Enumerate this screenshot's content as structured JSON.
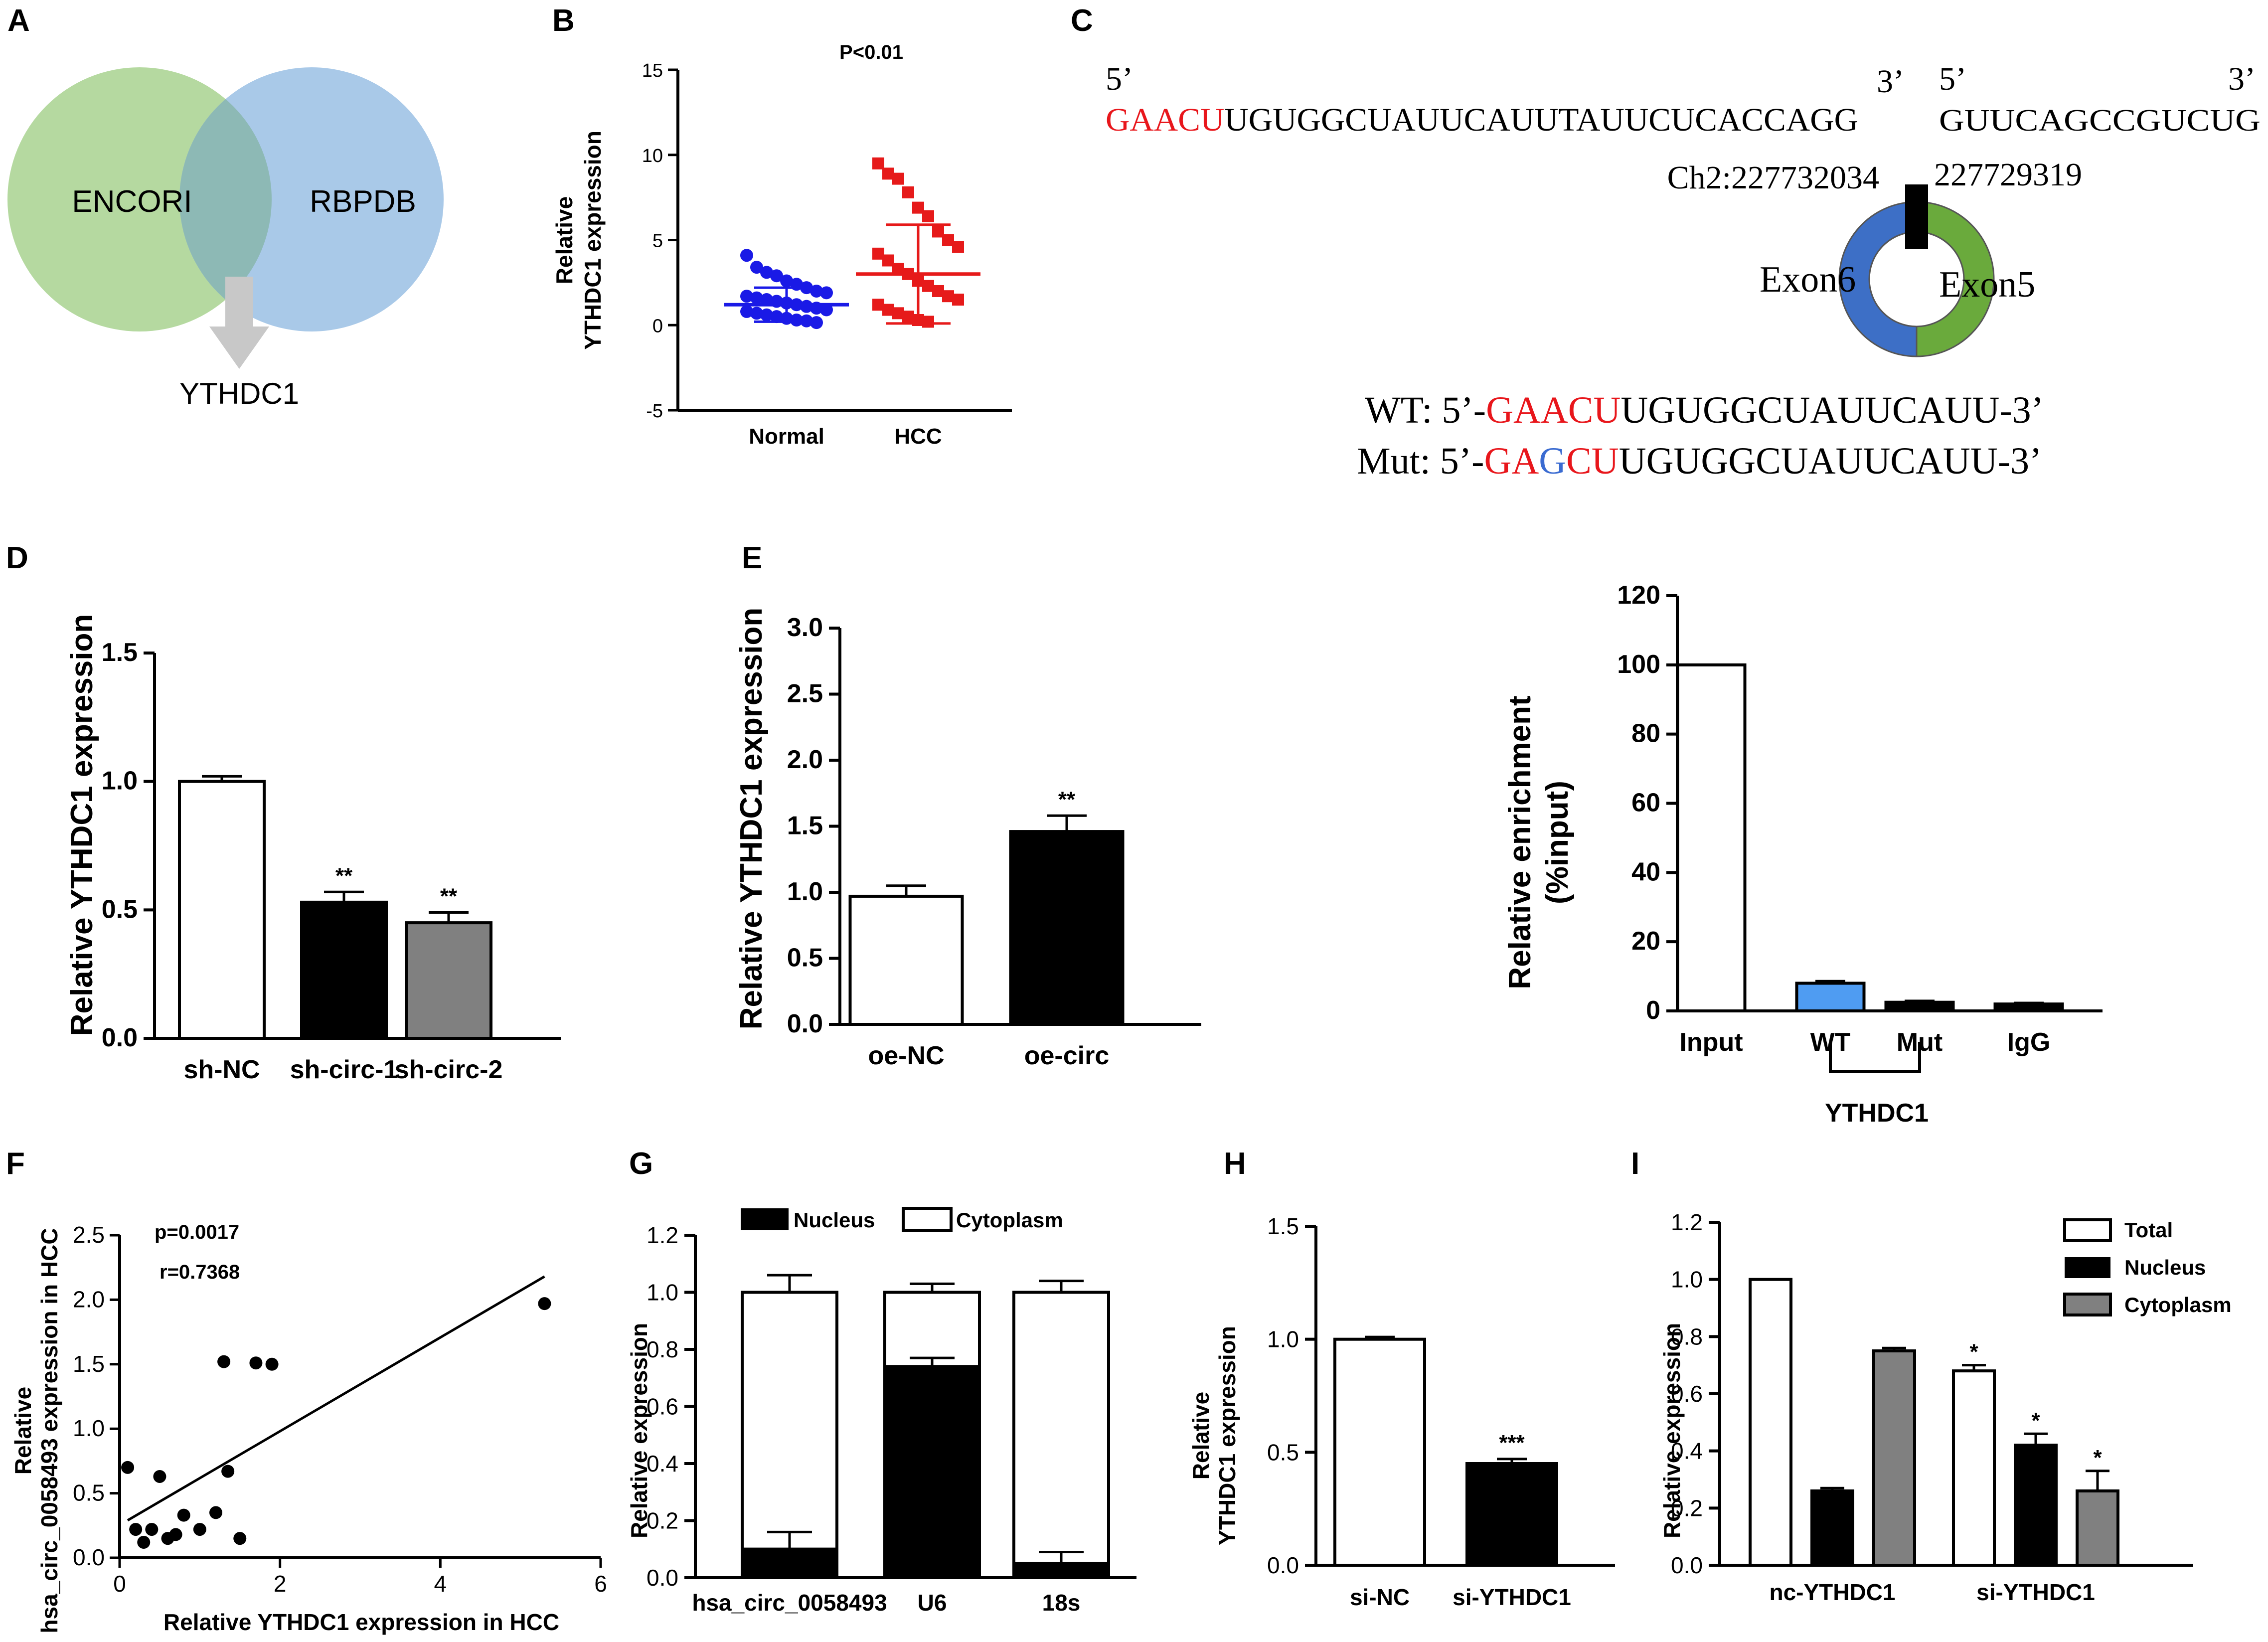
{
  "colors": {
    "venn_left": "#b5d9a0",
    "venn_right": "#a9c9e8",
    "venn_overlap": "#8db9b5",
    "arrow": "#c8c8c8",
    "normal_points": "#1a1ae6",
    "hcc_points": "#e61a1a",
    "seq_red": "#e8161b",
    "seq_blue": "#3a6bd1",
    "exon6": "#3d6fc6",
    "exon5": "#6aaa3c",
    "wt_bar": "#4f9cf2",
    "grey_bar": "#808080"
  },
  "panelA": {
    "label": "A",
    "left_circle": "ENCORI",
    "right_circle": "RBPDB",
    "result": "YTHDC1"
  },
  "panelB": {
    "label": "B",
    "pvalue": "P<0.01",
    "ylabel_line1": "Relative",
    "ylabel_line2": "YTHDC1 expression"
  },
  "panelC": {
    "label": "C",
    "five_prime_a": "5’",
    "three_prime_a": "3’",
    "five_prime_b": "5’",
    "three_prime_b": "3’",
    "seq_red": "GAACU",
    "seq_rest": "UGUGGCUAUUCAUUTAUUCUCACCAGG",
    "seq_right": "GUUCAGCCGUCUG",
    "coord_left": "Ch2:227732034",
    "coord_right": "227729319",
    "exon6": "Exon6",
    "exon5": "Exon5",
    "wt_prefix": "WT: 5’-",
    "wt_red": "GAACU",
    "wt_rest": "UGUGGCUAUUCAUU-3’",
    "mut_prefix": "Mut: 5’-",
    "mut_red1": "GA",
    "mut_blue": "G",
    "mut_red2": "CU",
    "mut_rest": "UGUGGCUAUUCAUU-3’"
  },
  "panelD": {
    "label": "D",
    "ylabel": "Relative YTHDC1 expression"
  },
  "panelE": {
    "label": "E",
    "ylabel": "Relative YTHDC1 expression"
  },
  "panelRIP": {
    "ylabel_line1": "Relative enrichment",
    "ylabel_line2": "(%input)",
    "group_label": "YTHDC1"
  },
  "panelF": {
    "label": "F",
    "ylabel_line1": "Relative",
    "ylabel_line2": "hsa_circ_0058493 expression in HCC",
    "xlabel": "Relative YTHDC1 expression in HCC",
    "p_text": "p=0.0017",
    "r_text": "r=0.7368"
  },
  "panelG": {
    "label": "G",
    "ylabel": "Relative expression",
    "legend_nucleus": "Nucleus",
    "legend_cytoplasm": "Cytoplasm"
  },
  "panelH": {
    "label": "H",
    "ylabel_line1": "Relative",
    "ylabel_line2": "YTHDC1 expression"
  },
  "panelI": {
    "label": "I",
    "ylabel": "Relative expression",
    "legend_total": "Total",
    "legend_nucleus": "Nucleus",
    "legend_cytoplasm": "Cytoplasm"
  },
  "chart_data": [
    {
      "id": "B",
      "type": "scatter",
      "title": "P<0.01",
      "xlabel": "",
      "ylabel": "Relative YTHDC1 expression",
      "ylim": [
        -5,
        15
      ],
      "yticks": [
        -5,
        0,
        5,
        10,
        15
      ],
      "categories": [
        "Normal",
        "HCC"
      ],
      "series": [
        {
          "name": "Normal",
          "mean": 1.2,
          "sd": 1.0,
          "values": [
            4.1,
            3.4,
            3.1,
            2.9,
            2.6,
            2.4,
            2.2,
            2.0,
            1.9,
            1.7,
            1.6,
            1.5,
            1.4,
            1.3,
            1.2,
            1.1,
            1.0,
            0.9,
            0.8,
            0.7,
            0.6,
            0.5,
            0.4,
            0.3,
            0.25,
            0.15
          ]
        },
        {
          "name": "HCC",
          "mean": 3.0,
          "sd": 2.9,
          "values": [
            9.5,
            8.9,
            8.6,
            7.8,
            6.9,
            6.4,
            5.5,
            5.0,
            4.6,
            4.2,
            3.8,
            3.3,
            3.0,
            2.6,
            2.3,
            2.0,
            1.7,
            1.5,
            1.2,
            0.9,
            0.7,
            0.5,
            0.3,
            0.2
          ]
        }
      ]
    },
    {
      "id": "D",
      "type": "bar",
      "ylabel": "Relative YTHDC1 expression",
      "ylim": [
        0,
        1.5
      ],
      "yticks": [
        "0.0",
        "0.5",
        "1.0",
        "1.5"
      ],
      "categories": [
        "sh-NC",
        "sh-circ-1",
        "sh-circ-2"
      ],
      "values": [
        1.0,
        0.53,
        0.45
      ],
      "errors": [
        0.02,
        0.04,
        0.04
      ],
      "annotations": [
        "",
        "**",
        "**"
      ]
    },
    {
      "id": "E",
      "type": "bar",
      "ylabel": "Relative YTHDC1 expression",
      "ylim": [
        0,
        3.0
      ],
      "yticks": [
        "0.0",
        "0.5",
        "1.0",
        "1.5",
        "2.0",
        "2.5",
        "3.0"
      ],
      "categories": [
        "oe-NC",
        "oe-circ"
      ],
      "values": [
        0.97,
        1.46
      ],
      "errors": [
        0.08,
        0.12
      ],
      "annotations": [
        "",
        "**"
      ]
    },
    {
      "id": "RIP",
      "type": "bar",
      "ylabel": "Relative enrichment (%input)",
      "ylim": [
        0,
        120
      ],
      "yticks": [
        "0",
        "20",
        "40",
        "60",
        "80",
        "100",
        "120"
      ],
      "categories": [
        "Input",
        "WT",
        "Mut",
        "IgG"
      ],
      "values": [
        100,
        8,
        2.5,
        2
      ],
      "errors": [
        0,
        0.6,
        0.4,
        0.3
      ],
      "group": {
        "label": "YTHDC1",
        "members": [
          "WT",
          "Mut"
        ]
      }
    },
    {
      "id": "F",
      "type": "scatter",
      "xlabel": "Relative YTHDC1 expression in HCC",
      "ylabel": "Relative hsa_circ_0058493 expression in HCC",
      "xlim": [
        0,
        6
      ],
      "ylim": [
        0,
        2.5
      ],
      "xticks": [
        "0",
        "2",
        "4",
        "6"
      ],
      "yticks": [
        "0.0",
        "0.5",
        "1.0",
        "1.5",
        "2.0",
        "2.5"
      ],
      "x": [
        0.1,
        0.2,
        0.3,
        0.4,
        0.5,
        0.6,
        0.7,
        0.8,
        1.0,
        1.2,
        1.3,
        1.35,
        1.5,
        1.7,
        1.9,
        5.3
      ],
      "y": [
        0.7,
        0.22,
        0.12,
        0.22,
        0.63,
        0.15,
        0.18,
        0.33,
        0.22,
        0.35,
        1.52,
        0.67,
        0.15,
        1.51,
        1.5,
        1.97
      ],
      "fit_line": {
        "x": [
          0.1,
          5.3
        ],
        "y": [
          0.29,
          2.18
        ]
      },
      "annotations": [
        "p=0.0017",
        "r=0.7368"
      ]
    },
    {
      "id": "G",
      "type": "bar",
      "stacked": true,
      "ylabel": "Relative expression",
      "ylim": [
        0,
        1.2
      ],
      "yticks": [
        "0.0",
        "0.2",
        "0.4",
        "0.6",
        "0.8",
        "1.0",
        "1.2"
      ],
      "categories": [
        "hsa_circ_0058493",
        "U6",
        "18s"
      ],
      "series": [
        {
          "name": "Nucleus",
          "values": [
            0.1,
            0.74,
            0.05
          ],
          "errors": [
            0.06,
            0.03,
            0.04
          ]
        },
        {
          "name": "Cytoplasm",
          "values": [
            0.9,
            0.26,
            0.95
          ],
          "errors": [
            0.06,
            0.03,
            0.04
          ]
        }
      ]
    },
    {
      "id": "H",
      "type": "bar",
      "ylabel": "Relative YTHDC1 expression",
      "ylim": [
        0,
        1.5
      ],
      "yticks": [
        "0.0",
        "0.5",
        "1.0",
        "1.5"
      ],
      "categories": [
        "si-NC",
        "si-YTHDC1"
      ],
      "values": [
        1.0,
        0.45
      ],
      "errors": [
        0.01,
        0.02
      ],
      "annotations": [
        "",
        "***"
      ]
    },
    {
      "id": "I",
      "type": "bar",
      "ylabel": "Relative expression",
      "ylim": [
        0,
        1.2
      ],
      "yticks": [
        "0.0",
        "0.2",
        "0.4",
        "0.6",
        "0.8",
        "1.0",
        "1.2"
      ],
      "categories": [
        "nc-YTHDC1",
        "si-YTHDC1"
      ],
      "series": [
        {
          "name": "Total",
          "values": [
            1.0,
            0.68
          ],
          "errors": [
            0,
            0.02
          ],
          "annotations": [
            "",
            "*"
          ]
        },
        {
          "name": "Nucleus",
          "values": [
            0.26,
            0.42
          ],
          "errors": [
            0.01,
            0.04
          ],
          "annotations": [
            "",
            "*"
          ]
        },
        {
          "name": "Cytoplasm",
          "values": [
            0.75,
            0.26
          ],
          "errors": [
            0.01,
            0.07
          ],
          "annotations": [
            "",
            "*"
          ]
        }
      ]
    }
  ]
}
